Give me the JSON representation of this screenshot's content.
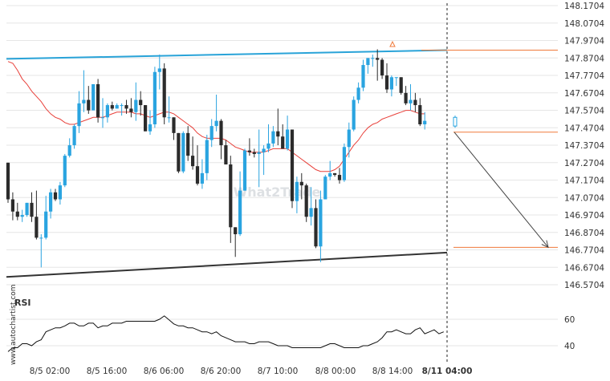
{
  "watermark_side": "www.autochartist.com",
  "watermark_center": "What2Trade",
  "colors": {
    "bull": "#2aa4e0",
    "bear": "#2b2b2b",
    "ma": "#e8403a",
    "resistance": "#29a3d8",
    "support": "#333333",
    "target": "#f07a3a",
    "rsi": "#111111",
    "grid": "#e6e6e6"
  },
  "chart_data": {
    "type": "candlestick",
    "symbol": "",
    "price_axis": {
      "min": 146.5704,
      "max": 148.1704,
      "ticks": [
        "148.1704",
        "148.0704",
        "147.9704",
        "147.8704",
        "147.7704",
        "147.6704",
        "147.5704",
        "147.4704",
        "147.3704",
        "147.2704",
        "147.1704",
        "147.0704",
        "146.9704",
        "146.8704",
        "146.7704",
        "146.6704",
        "146.5704"
      ]
    },
    "time_axis": {
      "labels": [
        "8/5 02:00",
        "8/5 16:00",
        "8/6 06:00",
        "8/6 20:00",
        "8/7 10:00",
        "8/8 00:00",
        "8/8 14:00",
        "8/11 04:00"
      ],
      "highlighted_label": "8/11 04:00"
    },
    "ohlc": [
      [
        147.27,
        147.27,
        147.04,
        147.06
      ],
      [
        147.06,
        147.1,
        146.94,
        146.99
      ],
      [
        146.99,
        147.04,
        146.94,
        146.96
      ],
      [
        146.96,
        147.0,
        146.93,
        146.97
      ],
      [
        146.97,
        147.04,
        146.96,
        147.04
      ],
      [
        147.04,
        147.1,
        146.93,
        146.96
      ],
      [
        146.96,
        147.11,
        146.83,
        146.84
      ],
      [
        146.84,
        146.86,
        146.67,
        146.84
      ],
      [
        146.84,
        147.08,
        146.83,
        146.99
      ],
      [
        146.99,
        147.12,
        146.95,
        147.1
      ],
      [
        147.1,
        147.12,
        147.05,
        147.06
      ],
      [
        147.06,
        147.16,
        147.03,
        147.14
      ],
      [
        147.14,
        147.32,
        147.13,
        147.31
      ],
      [
        147.31,
        147.41,
        147.3,
        147.37
      ],
      [
        147.37,
        147.49,
        147.35,
        147.48
      ],
      [
        147.48,
        147.68,
        147.44,
        147.61
      ],
      [
        147.61,
        147.8,
        147.56,
        147.63
      ],
      [
        147.63,
        147.71,
        147.55,
        147.57
      ],
      [
        147.57,
        147.72,
        147.57,
        147.72
      ],
      [
        147.72,
        147.75,
        147.5,
        147.53
      ],
      [
        147.53,
        147.64,
        147.47,
        147.53
      ],
      [
        147.53,
        147.61,
        147.5,
        147.6
      ],
      [
        147.6,
        147.62,
        147.57,
        147.58
      ],
      [
        147.58,
        147.61,
        147.58,
        147.6
      ],
      [
        147.6,
        147.61,
        147.54,
        147.6
      ],
      [
        147.6,
        147.63,
        147.55,
        147.58
      ],
      [
        147.58,
        147.64,
        147.53,
        147.56
      ],
      [
        147.56,
        147.73,
        147.51,
        147.63
      ],
      [
        147.63,
        147.68,
        147.54,
        147.6
      ],
      [
        147.6,
        147.6,
        147.45,
        147.45
      ],
      [
        147.45,
        147.57,
        147.43,
        147.49
      ],
      [
        147.49,
        147.82,
        147.47,
        147.79
      ],
      [
        147.79,
        147.89,
        147.69,
        147.81
      ],
      [
        147.81,
        147.84,
        147.49,
        147.53
      ],
      [
        147.53,
        147.65,
        147.5,
        147.53
      ],
      [
        147.53,
        147.53,
        147.4,
        147.44
      ],
      [
        147.44,
        147.44,
        147.21,
        147.22
      ],
      [
        147.22,
        147.45,
        147.21,
        147.44
      ],
      [
        147.44,
        147.48,
        147.28,
        147.31
      ],
      [
        147.31,
        147.42,
        147.23,
        147.25
      ],
      [
        147.25,
        147.37,
        147.14,
        147.15
      ],
      [
        147.15,
        147.29,
        147.12,
        147.21
      ],
      [
        147.21,
        147.43,
        147.17,
        147.4
      ],
      [
        147.4,
        147.52,
        147.36,
        147.48
      ],
      [
        147.48,
        147.66,
        147.45,
        147.51
      ],
      [
        147.51,
        147.52,
        147.29,
        147.37
      ],
      [
        147.37,
        147.4,
        147.26,
        147.26
      ],
      [
        147.26,
        147.31,
        146.81,
        146.9
      ],
      [
        146.9,
        146.9,
        146.73,
        146.86
      ],
      [
        146.86,
        147.22,
        146.85,
        147.11
      ],
      [
        147.11,
        147.35,
        147.11,
        147.34
      ],
      [
        147.34,
        147.41,
        147.31,
        147.33
      ],
      [
        147.33,
        147.35,
        147.3,
        147.32
      ],
      [
        147.32,
        147.46,
        147.13,
        147.33
      ],
      [
        147.33,
        147.37,
        147.2,
        147.35
      ],
      [
        147.35,
        147.49,
        147.33,
        147.38
      ],
      [
        147.38,
        147.48,
        147.36,
        147.45
      ],
      [
        147.45,
        147.58,
        147.37,
        147.42
      ],
      [
        147.42,
        147.49,
        147.35,
        147.35
      ],
      [
        147.35,
        147.54,
        147.34,
        147.46
      ],
      [
        147.46,
        147.46,
        147.01,
        147.05
      ],
      [
        147.05,
        147.19,
        146.98,
        147.16
      ],
      [
        147.16,
        147.21,
        147.06,
        147.14
      ],
      [
        147.14,
        147.15,
        146.93,
        146.96
      ],
      [
        146.96,
        147.13,
        146.91,
        147.01
      ],
      [
        147.01,
        147.06,
        146.78,
        146.79
      ],
      [
        146.79,
        147.11,
        146.7,
        147.06
      ],
      [
        147.06,
        147.2,
        147.06,
        147.19
      ],
      [
        147.19,
        147.28,
        147.17,
        147.21
      ],
      [
        147.21,
        147.21,
        147.19,
        147.2
      ],
      [
        147.2,
        147.24,
        147.15,
        147.17
      ],
      [
        147.17,
        147.38,
        147.16,
        147.36
      ],
      [
        147.36,
        147.5,
        147.3,
        147.46
      ],
      [
        147.46,
        147.65,
        147.45,
        147.63
      ],
      [
        147.63,
        147.73,
        147.61,
        147.7
      ],
      [
        147.7,
        147.86,
        147.68,
        147.83
      ],
      [
        147.83,
        147.87,
        147.78,
        147.87
      ],
      [
        147.87,
        147.89,
        147.82,
        147.87
      ],
      [
        147.87,
        147.92,
        147.74,
        147.86
      ],
      [
        147.86,
        147.87,
        147.75,
        147.77
      ],
      [
        147.77,
        147.84,
        147.67,
        147.69
      ],
      [
        147.69,
        147.77,
        147.65,
        147.76
      ],
      [
        147.76,
        147.76,
        147.71,
        147.76
      ],
      [
        147.76,
        147.76,
        147.66,
        147.67
      ],
      [
        147.67,
        147.71,
        147.6,
        147.61
      ],
      [
        147.61,
        147.72,
        147.57,
        147.63
      ],
      [
        147.63,
        147.67,
        147.56,
        147.6
      ],
      [
        147.6,
        147.64,
        147.48,
        147.49
      ],
      [
        147.49,
        147.56,
        147.46,
        147.51
      ]
    ],
    "moving_average": [
      147.85,
      147.84,
      147.8,
      147.75,
      147.72,
      147.68,
      147.65,
      147.62,
      147.58,
      147.55,
      147.53,
      147.52,
      147.5,
      147.49,
      147.49,
      147.5,
      147.51,
      147.52,
      147.53,
      147.53,
      147.53,
      147.54,
      147.55,
      147.56,
      147.56,
      147.56,
      147.56,
      147.55,
      147.55,
      147.54,
      147.53,
      147.54,
      147.55,
      147.56,
      147.56,
      147.55,
      147.53,
      147.51,
      147.49,
      147.47,
      147.44,
      147.42,
      147.41,
      147.41,
      147.41,
      147.41,
      147.4,
      147.38,
      147.36,
      147.35,
      147.34,
      147.33,
      147.33,
      147.33,
      147.33,
      147.34,
      147.35,
      147.35,
      147.35,
      147.35,
      147.33,
      147.31,
      147.29,
      147.27,
      147.25,
      147.23,
      147.22,
      147.22,
      147.22,
      147.23,
      147.25,
      147.29,
      147.33,
      147.37,
      147.4,
      147.44,
      147.47,
      147.49,
      147.5,
      147.52,
      147.53,
      147.54,
      147.55,
      147.56,
      147.57,
      147.57,
      147.56,
      147.55,
      147.55
    ],
    "resistance_line": {
      "start_price": 147.865,
      "end_price": 147.915
    },
    "support_line": {
      "start_price": 146.615,
      "end_price": 146.755
    },
    "levels": [
      147.915,
      147.445,
      146.785
    ],
    "projection": {
      "from_price": 147.445,
      "to_price": 146.785
    },
    "forecast_candle": [
      147.48,
      147.54,
      147.47,
      147.53
    ],
    "rsi": {
      "label": "RSI",
      "ticks": [
        "60",
        "40"
      ],
      "range": [
        30,
        70
      ],
      "values": [
        35.5,
        38.5,
        38.5,
        41.5,
        41.5,
        40.0,
        43.0,
        44.5,
        50.5,
        52.0,
        53.5,
        53.5,
        55.0,
        57.0,
        57.0,
        55.0,
        55.0,
        57.0,
        57.0,
        53.5,
        55.0,
        55.0,
        57.0,
        57.0,
        57.0,
        58.5,
        58.5,
        58.5,
        58.5,
        58.5,
        58.5,
        58.5,
        60.0,
        62.5,
        59.5,
        56.5,
        55.0,
        55.0,
        53.5,
        53.5,
        52.0,
        50.5,
        50.5,
        49.0,
        50.5,
        47.5,
        46.0,
        44.5,
        43.0,
        43.0,
        43.0,
        41.5,
        41.5,
        43.0,
        43.0,
        43.0,
        41.5,
        40.0,
        40.0,
        40.0,
        38.5,
        38.5,
        38.5,
        38.5,
        38.5,
        38.5,
        38.5,
        40.0,
        41.5,
        41.5,
        40.0,
        38.5,
        38.5,
        38.5,
        38.5,
        40.0,
        40.0,
        41.5,
        43.0,
        46.0,
        50.5,
        50.5,
        52.0,
        50.5,
        49.0,
        49.0,
        52.0,
        53.5,
        49.0,
        50.5,
        52.0,
        49.0,
        50.5
      ]
    }
  }
}
